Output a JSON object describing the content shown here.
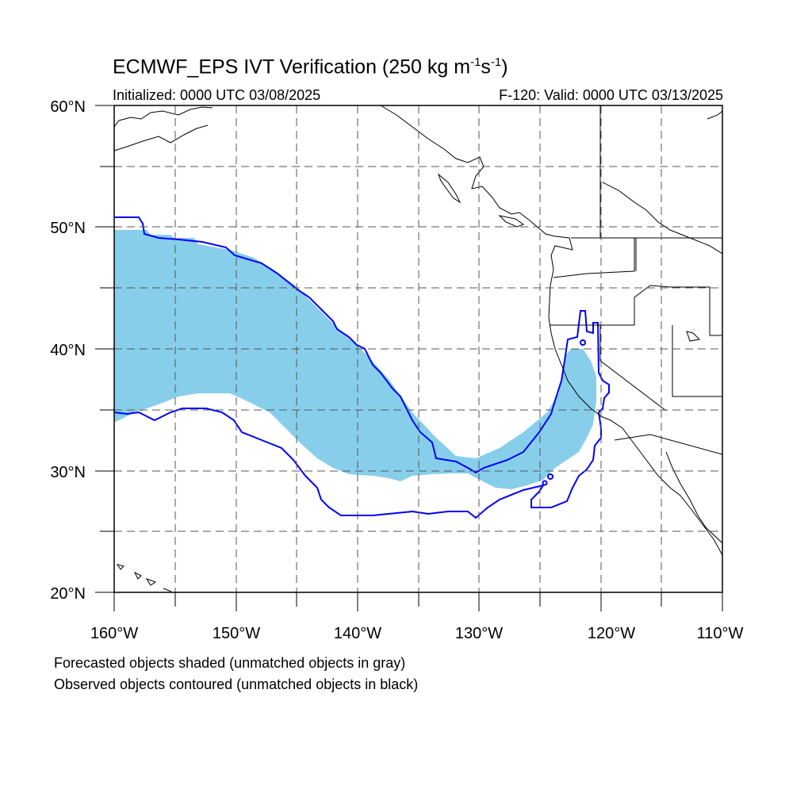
{
  "title": {
    "main": "ECMWF_EPS IVT Verification (250 kg m",
    "exp1": "-1",
    "mid": "s",
    "exp2": "-1",
    "close": ")"
  },
  "initialized": "Initialized: 0000 UTC 03/08/2025",
  "valid": "F-120: Valid: 0000 UTC 03/13/2025",
  "notes": [
    "Forecasted objects shaded (unmatched objects in gray)",
    "Observed objects contoured (unmatched objects in black)"
  ],
  "map": {
    "lon_range": [
      -160,
      -110
    ],
    "lat_range": [
      20,
      60
    ],
    "grid": "dashed",
    "lon_labels": [
      "160°W",
      "150°W",
      "140°W",
      "130°W",
      "120°W",
      "110°W"
    ],
    "lat_labels": [
      "20°N",
      "30°N",
      "40°N",
      "50°N",
      "60°N"
    ],
    "colors": {
      "forecast_fill": "#87ceeb",
      "observed_contour": "#0000ff",
      "coastline": "#000000"
    }
  }
}
